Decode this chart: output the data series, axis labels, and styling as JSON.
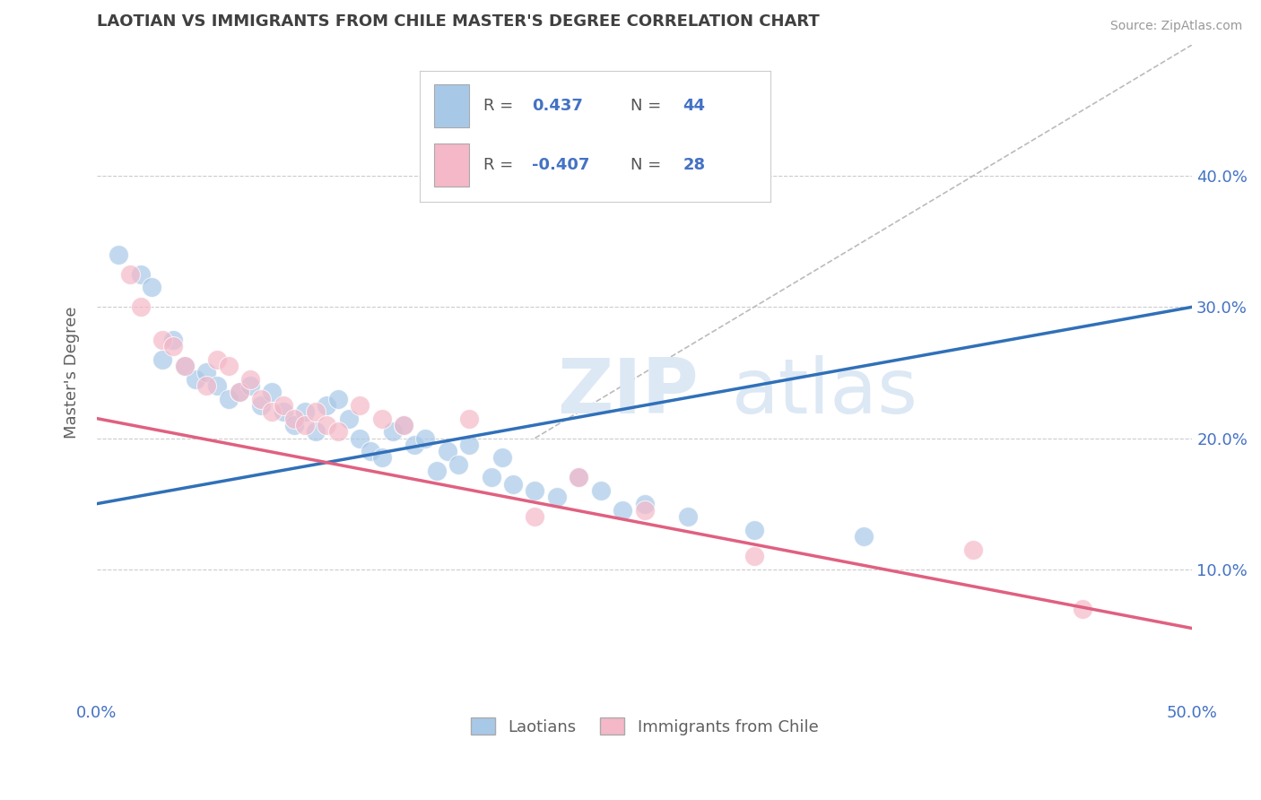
{
  "title": "LAOTIAN VS IMMIGRANTS FROM CHILE MASTER'S DEGREE CORRELATION CHART",
  "source_text": "Source: ZipAtlas.com",
  "ylabel": "Master's Degree",
  "xlim": [
    0.0,
    50.0
  ],
  "ylim": [
    0.0,
    50.0
  ],
  "blue_color": "#a8c8e8",
  "pink_color": "#f4b8c8",
  "blue_line_color": "#3070b8",
  "pink_line_color": "#e06080",
  "blue_R": "0.437",
  "blue_N": "44",
  "pink_R": "-0.407",
  "pink_N": "28",
  "legend_label_blue": "Laotians",
  "legend_label_pink": "Immigrants from Chile",
  "blue_scatter": [
    [
      1.0,
      34.0
    ],
    [
      2.0,
      32.5
    ],
    [
      2.5,
      31.5
    ],
    [
      3.0,
      26.0
    ],
    [
      3.5,
      27.5
    ],
    [
      4.0,
      25.5
    ],
    [
      4.5,
      24.5
    ],
    [
      5.0,
      25.0
    ],
    [
      5.5,
      24.0
    ],
    [
      6.0,
      23.0
    ],
    [
      6.5,
      23.5
    ],
    [
      7.0,
      24.0
    ],
    [
      7.5,
      22.5
    ],
    [
      8.0,
      23.5
    ],
    [
      8.5,
      22.0
    ],
    [
      9.0,
      21.0
    ],
    [
      9.5,
      22.0
    ],
    [
      10.0,
      20.5
    ],
    [
      10.5,
      22.5
    ],
    [
      11.0,
      23.0
    ],
    [
      11.5,
      21.5
    ],
    [
      12.0,
      20.0
    ],
    [
      12.5,
      19.0
    ],
    [
      13.0,
      18.5
    ],
    [
      13.5,
      20.5
    ],
    [
      14.0,
      21.0
    ],
    [
      14.5,
      19.5
    ],
    [
      15.0,
      20.0
    ],
    [
      15.5,
      17.5
    ],
    [
      16.0,
      19.0
    ],
    [
      16.5,
      18.0
    ],
    [
      17.0,
      19.5
    ],
    [
      18.0,
      17.0
    ],
    [
      18.5,
      18.5
    ],
    [
      19.0,
      16.5
    ],
    [
      20.0,
      16.0
    ],
    [
      21.0,
      15.5
    ],
    [
      22.0,
      17.0
    ],
    [
      23.0,
      16.0
    ],
    [
      24.0,
      14.5
    ],
    [
      25.0,
      15.0
    ],
    [
      27.0,
      14.0
    ],
    [
      30.0,
      13.0
    ],
    [
      35.0,
      12.5
    ]
  ],
  "pink_scatter": [
    [
      1.5,
      32.5
    ],
    [
      2.0,
      30.0
    ],
    [
      3.0,
      27.5
    ],
    [
      3.5,
      27.0
    ],
    [
      4.0,
      25.5
    ],
    [
      5.0,
      24.0
    ],
    [
      5.5,
      26.0
    ],
    [
      6.0,
      25.5
    ],
    [
      6.5,
      23.5
    ],
    [
      7.0,
      24.5
    ],
    [
      7.5,
      23.0
    ],
    [
      8.0,
      22.0
    ],
    [
      8.5,
      22.5
    ],
    [
      9.0,
      21.5
    ],
    [
      9.5,
      21.0
    ],
    [
      10.0,
      22.0
    ],
    [
      10.5,
      21.0
    ],
    [
      11.0,
      20.5
    ],
    [
      12.0,
      22.5
    ],
    [
      13.0,
      21.5
    ],
    [
      14.0,
      21.0
    ],
    [
      17.0,
      21.5
    ],
    [
      20.0,
      14.0
    ],
    [
      22.0,
      17.0
    ],
    [
      25.0,
      14.5
    ],
    [
      30.0,
      11.0
    ],
    [
      40.0,
      11.5
    ],
    [
      45.0,
      7.0
    ]
  ],
  "blue_line_x": [
    0.0,
    50.0
  ],
  "blue_line_y": [
    15.0,
    30.0
  ],
  "pink_line_x": [
    0.0,
    50.0
  ],
  "pink_line_y": [
    21.5,
    5.5
  ],
  "diagonal_line_x": [
    20.0,
    50.0
  ],
  "diagonal_line_y": [
    20.0,
    50.0
  ],
  "background_color": "#ffffff",
  "grid_color": "#cccccc",
  "title_color": "#404040",
  "axis_label_color": "#606060",
  "tick_color": "#4472c4",
  "watermark_zip": "ZIP",
  "watermark_atlas": "atlas",
  "watermark_color": "#dde8f5"
}
